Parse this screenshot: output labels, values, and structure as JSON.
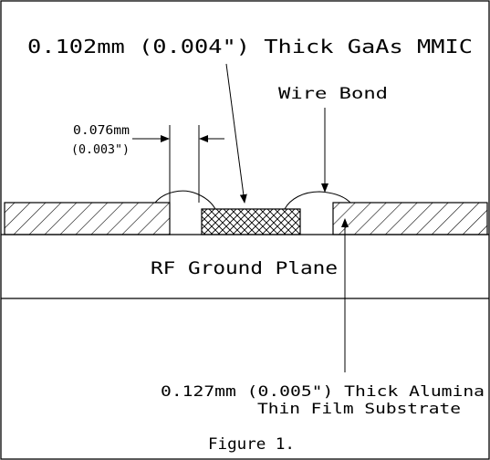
{
  "labels": {
    "mmic": "0.102mm (0.004\") Thick GaAs MMIC",
    "wire_bond": "Wire Bond",
    "gap_mm": "0.076mm",
    "gap_in": "(0.003\")",
    "ground_plane": "RF Ground Plane",
    "substrate_line1": "0.127mm (0.005\") Thick Alumina",
    "substrate_line2": "Thin Film Substrate",
    "figure": "Figure 1."
  },
  "colors": {
    "ink": "#000000",
    "background": "#ffffff"
  }
}
